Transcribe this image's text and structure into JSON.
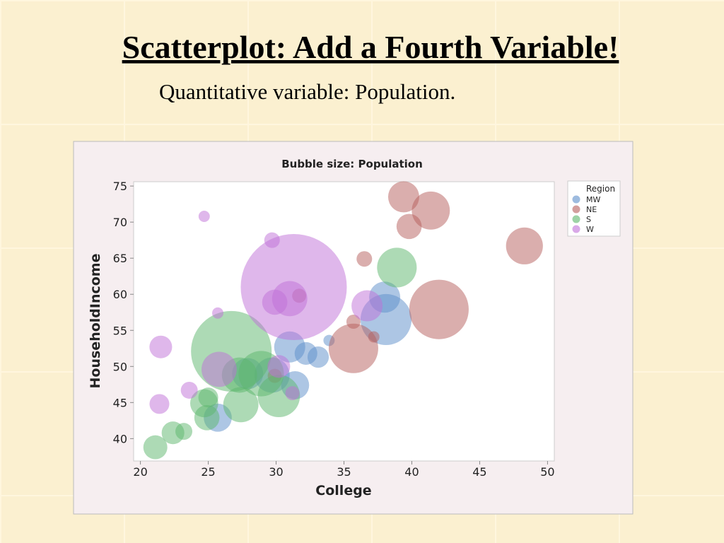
{
  "slide": {
    "title": "Scatterplot:  Add a Fourth Variable!",
    "subtitle": "Quantitative variable:  Population."
  },
  "chart_data": {
    "type": "bubble",
    "title": "Bubble size: Population",
    "x_label": "College",
    "y_label": "HouseholdIncome",
    "legend_title": "Region",
    "legend_position": "right",
    "xlim": [
      19.5,
      50.5
    ],
    "ylim": [
      36.9,
      75.6
    ],
    "xticks": [
      20,
      25,
      30,
      35,
      40,
      45,
      50
    ],
    "yticks": [
      40,
      45,
      50,
      55,
      60,
      65,
      70,
      75
    ],
    "series": [
      {
        "name": "MW",
        "color": "#5b8ec9",
        "x": [
          38.0,
          38.1,
          33.9,
          31.0,
          32.2,
          33.1,
          31.4,
          29.7,
          25.7,
          27.9
        ],
        "values": [
          59.6,
          56.5,
          53.6,
          52.7,
          51.8,
          51.3,
          47.4,
          48.8,
          42.9,
          49.0
        ],
        "sizes": [
          3.2,
          8.6,
          0.42,
          3.2,
          1.7,
          1.5,
          2.6,
          4.1,
          2.6,
          3.2
        ]
      },
      {
        "name": "NE",
        "color": "#b65e5b",
        "x": [
          39.4,
          41.4,
          39.8,
          48.3,
          36.5,
          42.0,
          35.7,
          35.7,
          37.2,
          31.7,
          29.9
        ],
        "values": [
          73.5,
          71.6,
          69.4,
          66.7,
          64.9,
          57.9,
          56.2,
          52.5,
          54.1,
          59.8,
          48.7
        ],
        "sizes": [
          3.2,
          4.8,
          2.1,
          4.5,
          0.8,
          11.7,
          0.66,
          8.1,
          0.42,
          0.66,
          0.66
        ]
      },
      {
        "name": "S",
        "color": "#5bb56b",
        "x": [
          38.9,
          26.7,
          28.9,
          27.3,
          27.4,
          30.2,
          24.7,
          24.9,
          22.4,
          23.2,
          21.1,
          25.0
        ],
        "values": [
          63.7,
          52.1,
          49.0,
          48.8,
          44.7,
          45.9,
          44.9,
          42.9,
          40.8,
          41.0,
          38.8,
          45.7
        ],
        "sizes": [
          5.2,
          21.5,
          6.8,
          4.1,
          4.1,
          5.9,
          2.6,
          2.1,
          1.7,
          0.95,
          1.9,
          1.3
        ]
      },
      {
        "name": "W",
        "color": "#c06fd8",
        "x": [
          31.3,
          24.7,
          29.7,
          31.0,
          29.9,
          25.7,
          21.5,
          25.8,
          36.7,
          21.4,
          23.6,
          30.2,
          31.2
        ],
        "values": [
          61.0,
          70.8,
          67.5,
          59.4,
          58.9,
          57.4,
          52.7,
          49.6,
          58.4,
          44.8,
          46.7,
          50.0,
          46.3
        ],
        "sizes": [
          37.2,
          0.42,
          0.8,
          4.1,
          2.1,
          0.42,
          1.7,
          4.1,
          3.2,
          1.3,
          0.95,
          1.7,
          0.66
        ]
      }
    ]
  }
}
